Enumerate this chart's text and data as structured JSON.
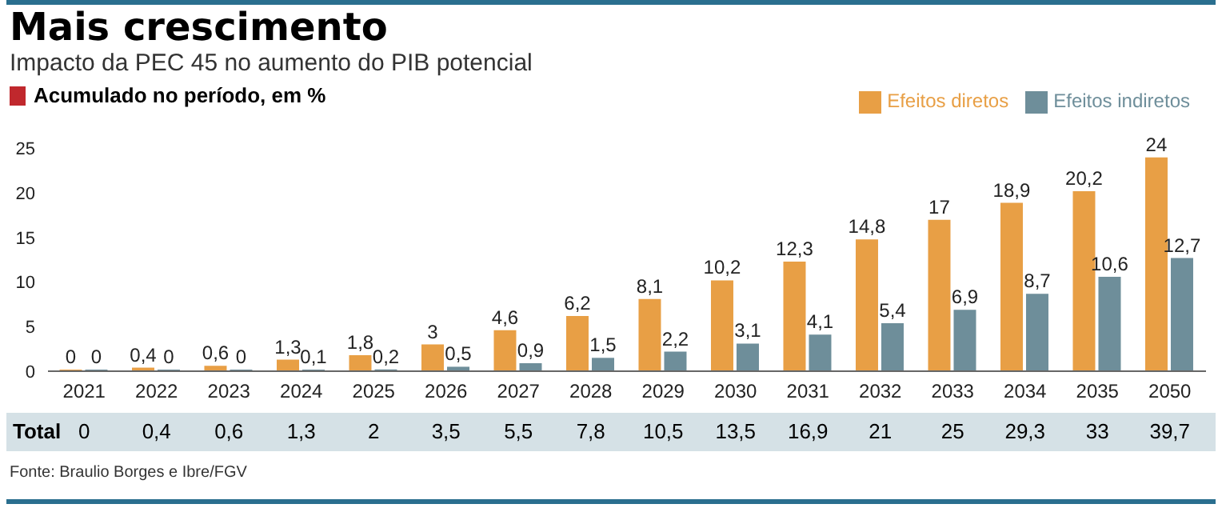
{
  "chart_data": {
    "type": "bar",
    "title": "Mais crescimento",
    "subtitle": "Impacto da PEC 45 no aumento do PIB potencial",
    "ylabel": "Acumulado no período, em %",
    "categories": [
      "2021",
      "2022",
      "2023",
      "2024",
      "2025",
      "2026",
      "2027",
      "2028",
      "2029",
      "2030",
      "2031",
      "2032",
      "2033",
      "2034",
      "2035",
      "2050"
    ],
    "series": [
      {
        "name": "Efeitos diretos",
        "color": "#e89f45",
        "values": [
          0,
          0.4,
          0.6,
          1.3,
          1.8,
          3,
          4.6,
          6.2,
          8.1,
          10.2,
          12.3,
          14.8,
          17,
          18.9,
          20.2,
          24
        ],
        "value_labels": [
          "0",
          "0,4",
          "0,6",
          "1,3",
          "1,8",
          "3",
          "4,6",
          "6,2",
          "8,1",
          "10,2",
          "12,3",
          "14,8",
          "17",
          "18,9",
          "20,2",
          "24"
        ]
      },
      {
        "name": "Efeitos indiretos",
        "color": "#6e8e9a",
        "values": [
          0,
          0,
          0,
          0.1,
          0.2,
          0.5,
          0.9,
          1.5,
          2.2,
          3.1,
          4.1,
          5.4,
          6.9,
          8.7,
          10.6,
          12.7
        ],
        "value_labels": [
          "0",
          "0",
          "0",
          "0,1",
          "0,2",
          "0,5",
          "0,9",
          "1,5",
          "2,2",
          "3,1",
          "4,1",
          "5,4",
          "6,9",
          "8,7",
          "10,6",
          "12,7"
        ]
      }
    ],
    "ylim": [
      0,
      25
    ],
    "yticks": [
      0,
      5,
      10,
      15,
      20,
      25
    ],
    "legend": "top right",
    "annotations": [
      "Total",
      "0",
      "0,4",
      "0,6",
      "1,3",
      "2",
      "3,5",
      "5,5",
      "7,8",
      "10,5",
      "13,5",
      "16,9",
      "21",
      "25",
      "29,3",
      "33",
      "39,7",
      "Fonte: Braulio Borges e Ibre/FGV"
    ]
  }
}
